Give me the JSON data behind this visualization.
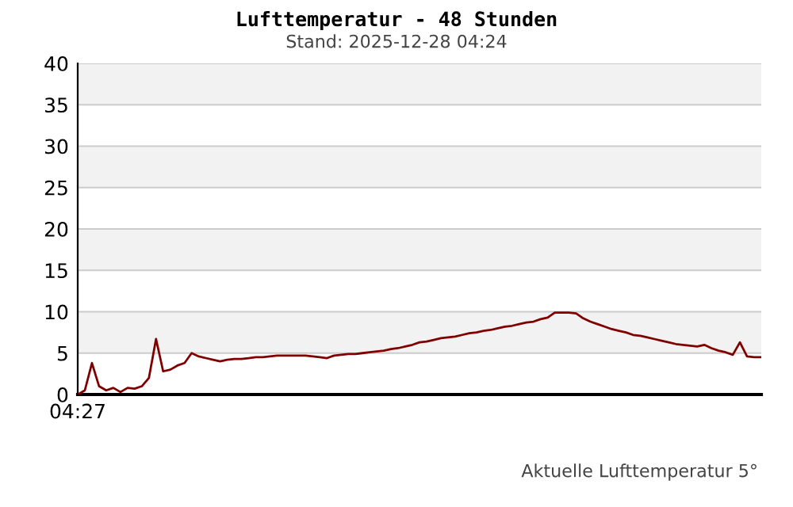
{
  "chart_data": {
    "type": "line",
    "title": "Lufttemperatur - 48 Stunden",
    "subtitle": "Stand: 2025-12-28 04:24",
    "annotations": [
      "Aktuelle Lufttemperatur 5°"
    ],
    "categories": [
      "04:27",
      null,
      null,
      null,
      null,
      null,
      null,
      null,
      null,
      null,
      null,
      null,
      null,
      null,
      null,
      null,
      null,
      null,
      null,
      null,
      null,
      null,
      null,
      null,
      null,
      null,
      null,
      null,
      null,
      null,
      null,
      null,
      null,
      null,
      null,
      null,
      null,
      null,
      null,
      null,
      null,
      null,
      null,
      null,
      null,
      null,
      null,
      null,
      null,
      null,
      null,
      null,
      null,
      null,
      null,
      null,
      null,
      null,
      null,
      null,
      null,
      null,
      null,
      null,
      null,
      null,
      null,
      null,
      null,
      null,
      null,
      null,
      null,
      null,
      null,
      null,
      null,
      null,
      null,
      null,
      null,
      null,
      null,
      null,
      null,
      null,
      null,
      null,
      null,
      null,
      null,
      null,
      null,
      null,
      null,
      null,
      null
    ],
    "series": [
      {
        "color": "#800000",
        "values": [
          0.0,
          0.5,
          3.8,
          1.0,
          0.5,
          0.8,
          0.3,
          0.8,
          0.7,
          1.0,
          2.0,
          6.7,
          2.8,
          3.0,
          3.5,
          3.8,
          5.0,
          4.6,
          4.4,
          4.2,
          4.0,
          4.2,
          4.3,
          4.3,
          4.4,
          4.5,
          4.5,
          4.6,
          4.7,
          4.7,
          4.7,
          4.7,
          4.7,
          4.6,
          4.5,
          4.4,
          4.7,
          4.8,
          4.9,
          4.9,
          5.0,
          5.1,
          5.2,
          5.3,
          5.5,
          5.6,
          5.8,
          6.0,
          6.3,
          6.4,
          6.6,
          6.8,
          6.9,
          7.0,
          7.2,
          7.4,
          7.5,
          7.7,
          7.8,
          8.0,
          8.2,
          8.3,
          8.5,
          8.7,
          8.8,
          9.1,
          9.3,
          9.9,
          9.9,
          9.9,
          9.8,
          9.2,
          8.8,
          8.5,
          8.2,
          7.9,
          7.7,
          7.5,
          7.2,
          7.1,
          6.9,
          6.7,
          6.5,
          6.3,
          6.1,
          6.0,
          5.9,
          5.8,
          6.0,
          5.6,
          5.3,
          5.1,
          4.8,
          6.3,
          4.6,
          4.5,
          4.5
        ]
      }
    ],
    "ylim": [
      0,
      40
    ],
    "yticks": [
      0,
      5,
      10,
      15,
      20,
      25,
      30,
      35,
      40
    ],
    "grid": "y",
    "marker": "none",
    "line_style": "solid",
    "bands": [
      {
        "axis": "y",
        "from": 5,
        "to": 10,
        "color": "#f2f2f2"
      },
      {
        "axis": "y",
        "from": 15,
        "to": 20,
        "color": "#f2f2f2"
      },
      {
        "axis": "y",
        "from": 25,
        "to": 30,
        "color": "#f2f2f2"
      },
      {
        "axis": "y",
        "from": 35,
        "to": 40,
        "color": "#f2f2f2"
      }
    ]
  }
}
